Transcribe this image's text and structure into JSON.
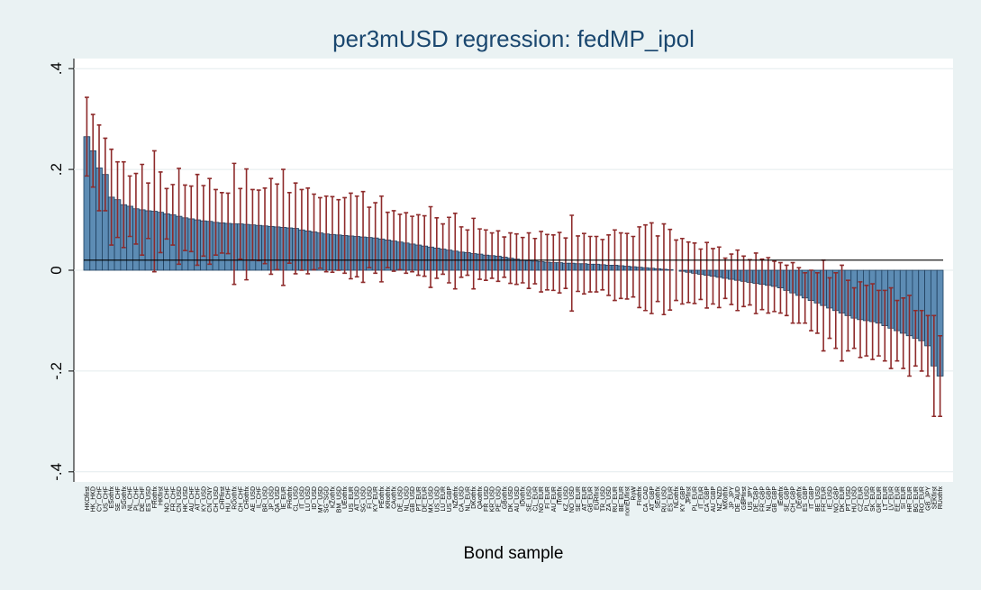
{
  "chart_data": {
    "type": "bar",
    "title": "per3mUSD regression: fedMP_ipol",
    "x_label": "Bond sample",
    "color": "#5d8cb4",
    "error_color": "#8e2b2b",
    "reference_line": 0.02,
    "ylim": [
      -0.42,
      0.42
    ],
    "yticks": [
      {
        "value": -0.4,
        "label": "-.4"
      },
      {
        "value": -0.2,
        "label": "-.2"
      },
      0,
      {
        "value": 0.2,
        "label": ".2"
      },
      {
        "value": 0.4,
        "label": ".4"
      }
    ],
    "categories": [
      "HKOfirst",
      "HK_HKD",
      "CY_CHF",
      "US_CHF",
      "ESothfx",
      "SE_CHF",
      "SGothfx",
      "NL_CHF",
      "PL_CHF",
      "DE_CHF",
      "ES_USD",
      "FRothfx",
      "HKfirst",
      "NO_CHF",
      "FR_CHF",
      "CN_USD",
      "HK_USD",
      "AU_CHF",
      "AT_CHF",
      "KY_USD",
      "CN_CNY",
      "CH_USD",
      "CHFfirst",
      "HU_CHF",
      "ROothfx",
      "CH_CHF",
      "CHothfx",
      "AE_USD",
      "IL_CHF",
      "BR_USD",
      "JP_USD",
      "QA_USD",
      "IE_EUR",
      "PHothfx",
      "CL_USD",
      "IT_USD",
      "LU_USD",
      "ID_USD",
      "MY_USD",
      "SG_SGD",
      "KZothfx",
      "BM_USD",
      "UEothfx",
      "US_EUR",
      "AT_USD",
      "SG_USD",
      "FI_USD",
      "KY_EUR",
      "PEothfx",
      "KRothfx",
      "CAothfx",
      "DE_USD",
      "NL_USD",
      "GB_USD",
      "PT_EUR",
      "DE_EUR",
      "MX_USD",
      "US_USD",
      "LU_EUR",
      "US_GBP",
      "NZothfx",
      "CA_USD",
      "NL_EUR",
      "DKothfx",
      "QAothfx",
      "FR_USD",
      "KR_USD",
      "PE_USD",
      "GBothfx",
      "DK_USD",
      "AU_USD",
      "IDothfx",
      "SE_USD",
      "CL_EUR",
      "NO_EUR",
      "FI_EUR",
      "AU_EUR",
      "ITothfx",
      "KZ_USD",
      "NO_USD",
      "SE_EUR",
      "AT_EUR",
      "GB_EUR",
      "EURfirst",
      "TR_USD",
      "ZA_USD",
      "RU_EUR",
      "BE_EUR",
      "nonEUfirst",
      "RoW",
      "FIothfx",
      "CA_CAD",
      "AT_GBP",
      "SEothfx",
      "RU_USD",
      "ES_EUR",
      "NLothfx",
      "KY_GBP",
      "JPfirst",
      "PL_EUR",
      "IT_EUR",
      "CA_GBP",
      "AU_GBP",
      "NZ_NZD",
      "MXothfx",
      "JP_JPY",
      "DE_AUD",
      "GBPfirst",
      "US_JPY",
      "DE_GBP",
      "FR_GBP",
      "NL_GBP",
      "GB_GBP",
      "IEothfx",
      "SE_GBP",
      "CH_GBP",
      "DEothfx",
      "ES_GBP",
      "IT_GBP",
      "BE_USD",
      "FR_EUR",
      "IE_USD",
      "NO_GBP",
      "DK_EUR",
      "PT_USD",
      "HU_USD",
      "CZ_EUR",
      "PL_USD",
      "SK_EUR",
      "GR_EUR",
      "LT_EUR",
      "LV_EUR",
      "EE_EUR",
      "SI_EUR",
      "HR_EUR",
      "BG_EUR",
      "RO_EUR",
      "GB_JPY",
      "SEKfirst",
      "RUothfx"
    ],
    "values": [
      0.265,
      0.237,
      0.203,
      0.19,
      0.145,
      0.14,
      0.13,
      0.127,
      0.122,
      0.12,
      0.118,
      0.117,
      0.115,
      0.112,
      0.11,
      0.107,
      0.104,
      0.102,
      0.1,
      0.098,
      0.097,
      0.095,
      0.094,
      0.093,
      0.092,
      0.092,
      0.091,
      0.09,
      0.089,
      0.088,
      0.087,
      0.086,
      0.085,
      0.084,
      0.083,
      0.08,
      0.078,
      0.076,
      0.074,
      0.072,
      0.071,
      0.07,
      0.069,
      0.068,
      0.067,
      0.066,
      0.065,
      0.064,
      0.062,
      0.06,
      0.058,
      0.056,
      0.054,
      0.052,
      0.05,
      0.048,
      0.046,
      0.044,
      0.042,
      0.04,
      0.038,
      0.036,
      0.035,
      0.033,
      0.032,
      0.03,
      0.029,
      0.028,
      0.026,
      0.024,
      0.022,
      0.02,
      0.019,
      0.018,
      0.017,
      0.016,
      0.015,
      0.015,
      0.014,
      0.014,
      0.013,
      0.013,
      0.012,
      0.012,
      0.011,
      0.01,
      0.01,
      0.009,
      0.008,
      0.007,
      0.006,
      0.005,
      0.004,
      0.003,
      0.002,
      0.001,
      0,
      -0.002,
      -0.004,
      -0.006,
      -0.008,
      -0.01,
      -0.012,
      -0.014,
      -0.016,
      -0.018,
      -0.02,
      -0.022,
      -0.024,
      -0.026,
      -0.028,
      -0.03,
      -0.032,
      -0.035,
      -0.04,
      -0.045,
      -0.05,
      -0.055,
      -0.06,
      -0.065,
      -0.07,
      -0.075,
      -0.08,
      -0.085,
      -0.09,
      -0.095,
      -0.098,
      -0.1,
      -0.102,
      -0.105,
      -0.11,
      -0.115,
      -0.12,
      -0.125,
      -0.13,
      -0.135,
      -0.14,
      -0.15,
      -0.19,
      -0.21
    ],
    "errors": [
      0.078,
      0.072,
      0.085,
      0.072,
      0.095,
      0.075,
      0.085,
      0.06,
      0.07,
      0.09,
      0.055,
      0.12,
      0.08,
      0.05,
      0.06,
      0.095,
      0.065,
      0.065,
      0.09,
      0.07,
      0.085,
      0.065,
      0.06,
      0.06,
      0.12,
      0.07,
      0.11,
      0.07,
      0.07,
      0.075,
      0.095,
      0.085,
      0.115,
      0.07,
      0.09,
      0.08,
      0.085,
      0.075,
      0.07,
      0.075,
      0.075,
      0.07,
      0.075,
      0.085,
      0.08,
      0.09,
      0.06,
      0.07,
      0.085,
      0.055,
      0.06,
      0.055,
      0.06,
      0.055,
      0.06,
      0.06,
      0.08,
      0.06,
      0.05,
      0.065,
      0.075,
      0.05,
      0.045,
      0.07,
      0.05,
      0.05,
      0.045,
      0.05,
      0.04,
      0.05,
      0.05,
      0.045,
      0.055,
      0.045,
      0.06,
      0.055,
      0.055,
      0.06,
      0.05,
      0.095,
      0.055,
      0.06,
      0.055,
      0.055,
      0.05,
      0.06,
      0.07,
      0.065,
      0.065,
      0.06,
      0.08,
      0.085,
      0.09,
      0.065,
      0.09,
      0.08,
      0.06,
      0.065,
      0.06,
      0.06,
      0.05,
      0.065,
      0.055,
      0.06,
      0.04,
      0.05,
      0.06,
      0.05,
      0.045,
      0.06,
      0.05,
      0.055,
      0.05,
      0.05,
      0.05,
      0.06,
      0.055,
      0.05,
      0.06,
      0.06,
      0.09,
      0.06,
      0.075,
      0.095,
      0.07,
      0.06,
      0.075,
      0.07,
      0.075,
      0.065,
      0.07,
      0.08,
      0.06,
      0.07,
      0.08,
      0.055,
      0.06,
      0.06,
      0.1,
      0.08
    ]
  }
}
